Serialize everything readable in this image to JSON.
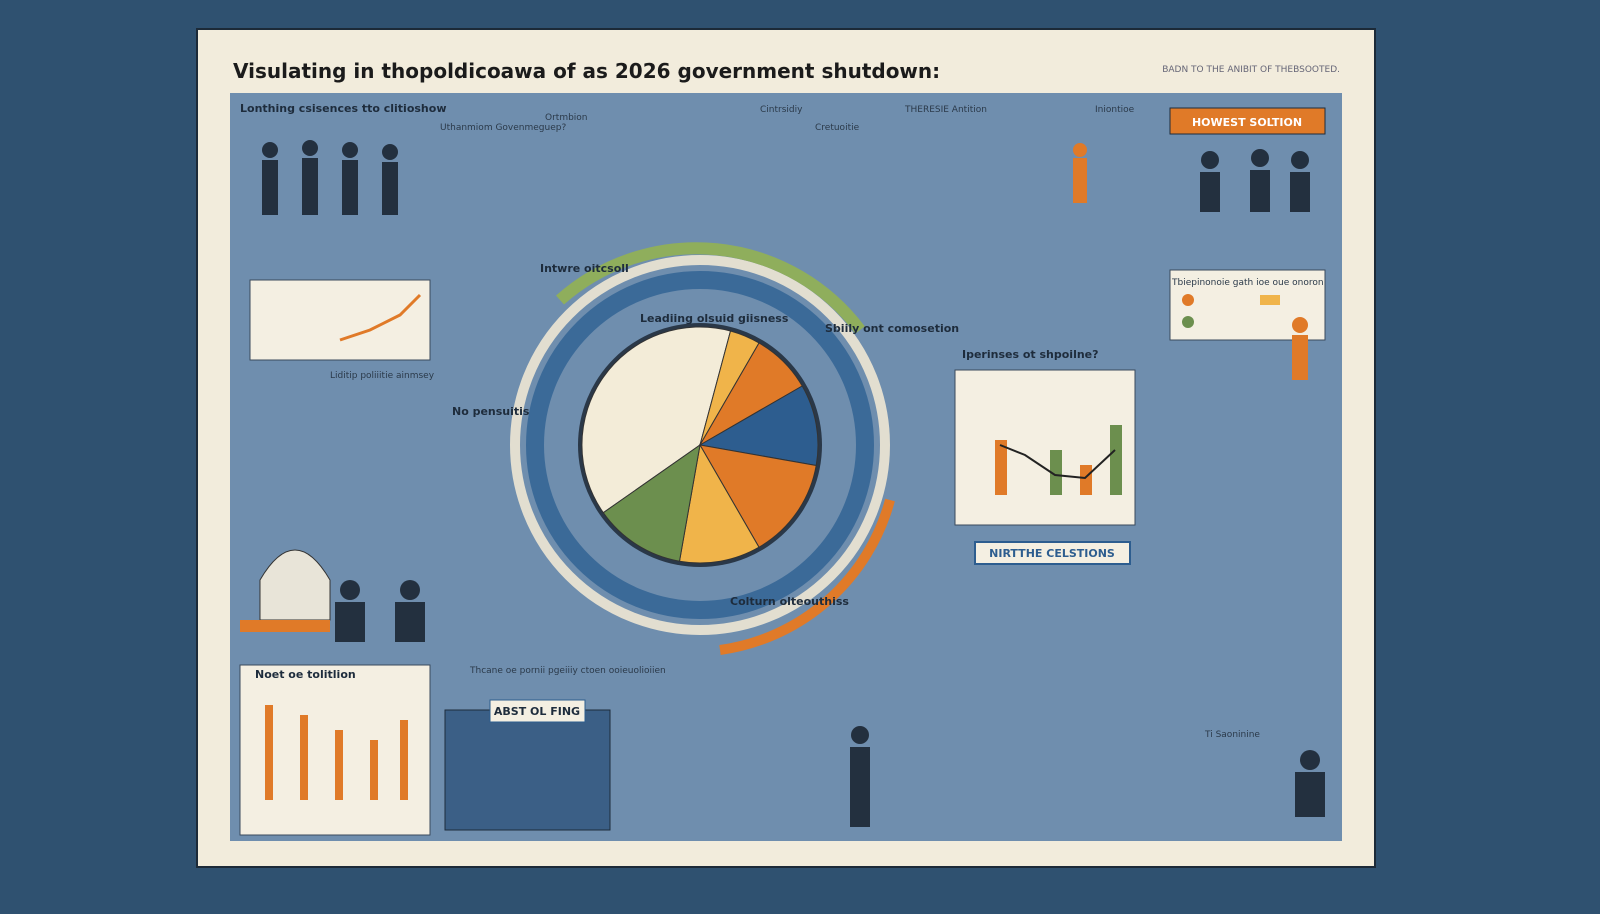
{
  "header": {
    "title": "Visulating in thopoldicoawa of as 2026  government shutdown:",
    "subtitle": "BADN TO THE ANIBIT OF THEBSOOTED."
  },
  "labels": [
    "Lonthing csisences tto clitioshow",
    "Uthanmiom Govenmeguep?",
    "Ortmbion",
    "Cintrsidiy",
    "Cretuoitie",
    "THERESIE Antition",
    "Iniontioe",
    "HOWEST SOLTION",
    "Intwre oitcsoll",
    "Leadiing olsuid giisness",
    "Sbiily ont comosetion",
    "Iperinses ot shpoilne?",
    "No pensuitis",
    "Liditip poliiitie ainmsey",
    "Colturn olteouthiss",
    "NIRTTHE CELSTIONS",
    "Noet oe tolitlion",
    "ABST OL FING",
    "Thcane oe pornii pgeiiiy ctoen ooieuolioiien",
    "Ti Saoninine",
    "Tbiepinonoie gath ioe oue onoron"
  ]
}
